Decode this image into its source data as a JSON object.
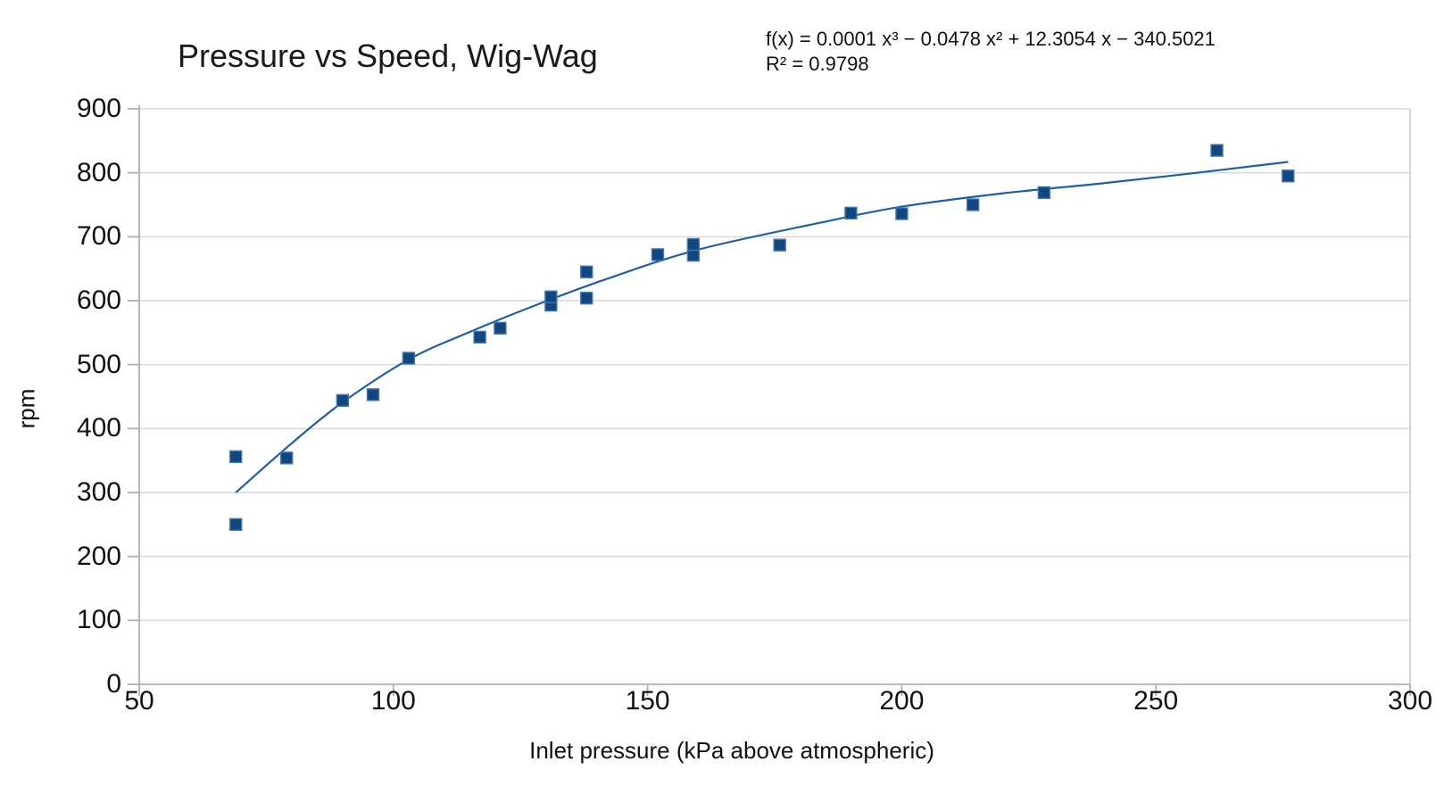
{
  "title": "Pressure vs Speed, Wig-Wag",
  "chart_data": {
    "type": "scatter",
    "title": "Pressure vs Speed, Wig-Wag",
    "xlabel": "Inlet pressure (kPa above atmospheric)",
    "ylabel": "rpm",
    "xlim": [
      50,
      300
    ],
    "ylim": [
      0,
      900
    ],
    "x_ticks": [
      50,
      100,
      150,
      200,
      250,
      300
    ],
    "y_ticks": [
      0,
      100,
      200,
      300,
      400,
      500,
      600,
      700,
      800,
      900
    ],
    "grid": "horizontal-only",
    "legend": "none",
    "series": [
      {
        "name": "rpm",
        "marker": "square",
        "points": [
          [
            69,
            356
          ],
          [
            69,
            250
          ],
          [
            79,
            354
          ],
          [
            90,
            444
          ],
          [
            96,
            453
          ],
          [
            103,
            510
          ],
          [
            117,
            543
          ],
          [
            121,
            557
          ],
          [
            131,
            593
          ],
          [
            131,
            606
          ],
          [
            138,
            604
          ],
          [
            138,
            645
          ],
          [
            152,
            672
          ],
          [
            159,
            671
          ],
          [
            159,
            688
          ],
          [
            176,
            687
          ],
          [
            190,
            737
          ],
          [
            200,
            736
          ],
          [
            214,
            750
          ],
          [
            228,
            769
          ],
          [
            262,
            835
          ],
          [
            276,
            795
          ]
        ]
      }
    ],
    "trendline": {
      "equation": "f(x) = 0.0001 x³ − 0.0478 x² + 12.3054 x − 340.5021",
      "r_squared": "R² = 0.9798",
      "curve_points": [
        [
          69,
          300
        ],
        [
          80,
          377
        ],
        [
          90,
          441
        ],
        [
          103,
          508
        ],
        [
          115,
          551
        ],
        [
          128,
          593
        ],
        [
          142,
          634
        ],
        [
          160,
          680
        ],
        [
          184,
          722
        ],
        [
          200,
          747
        ],
        [
          220,
          768
        ],
        [
          240,
          784
        ],
        [
          258,
          800
        ],
        [
          276,
          817
        ]
      ]
    },
    "colors": {
      "marker_fill": "#11467e",
      "marker_edge": "#4479ae",
      "trend_line": "#1e5fa9",
      "gridline": "#d9d9d9",
      "axis_line": "#b0b0b0",
      "plot_border": "#c8c8c8",
      "text": "#111111"
    }
  }
}
